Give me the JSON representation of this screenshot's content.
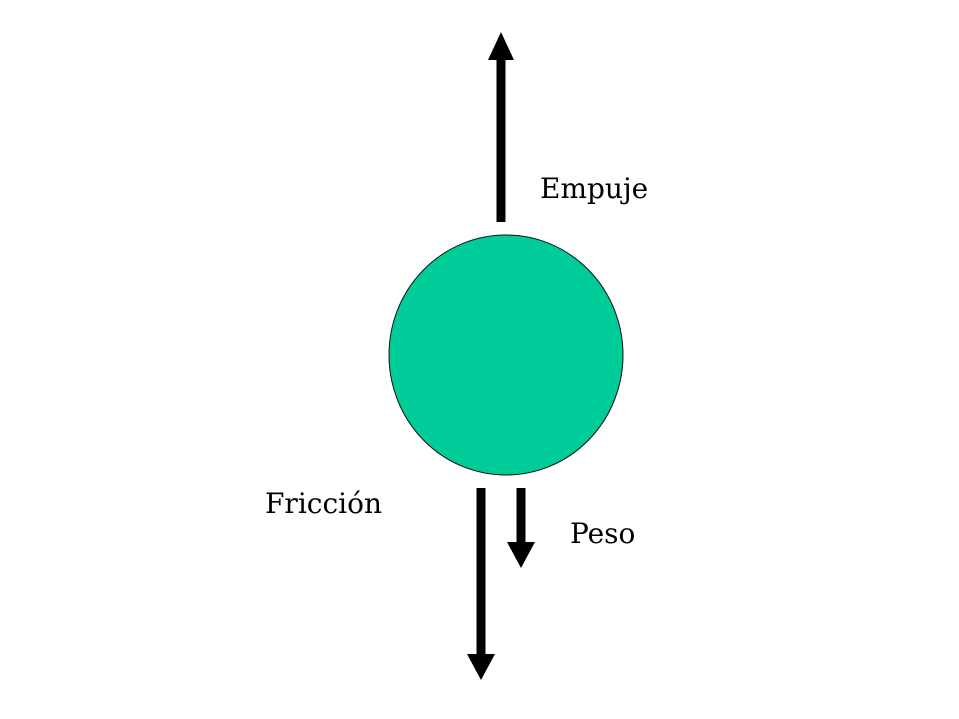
{
  "colors": {
    "ball_fill": "#00CC99",
    "ball_stroke": "#111111",
    "arrow": "#000000",
    "background": "#ffffff"
  },
  "labels": {
    "empuje": "Empuje",
    "friccion": "Fricción",
    "peso": "Peso"
  }
}
